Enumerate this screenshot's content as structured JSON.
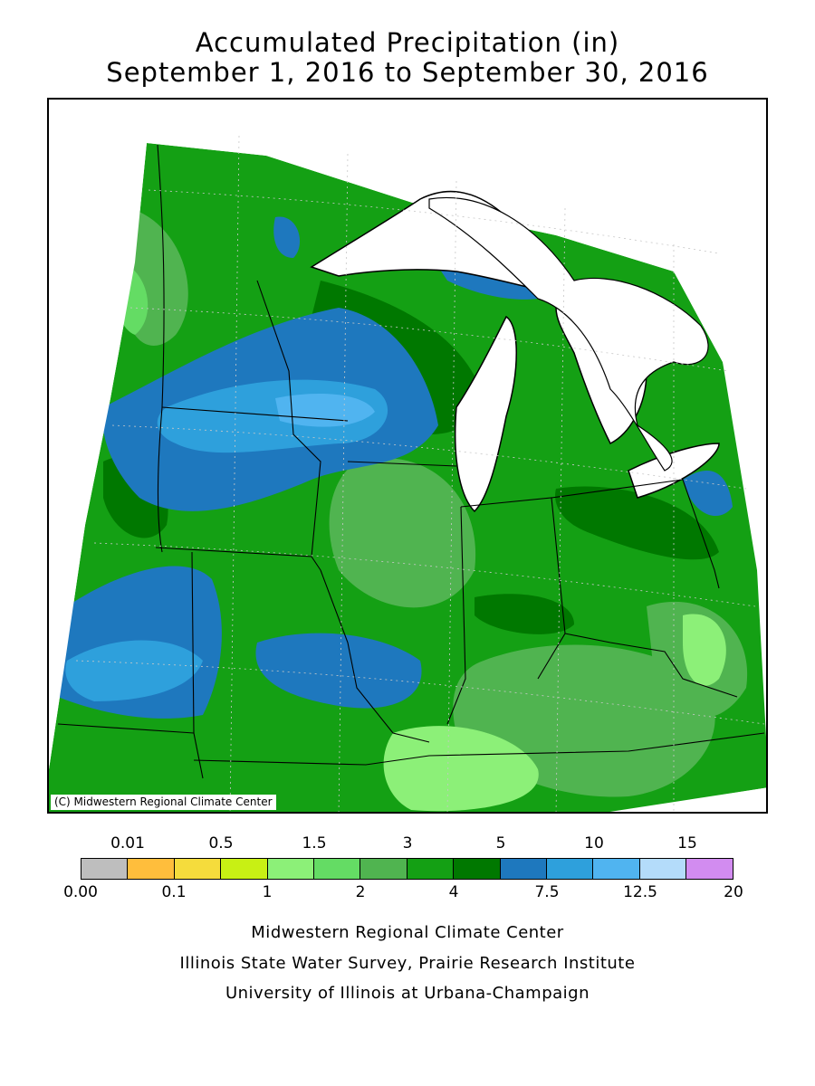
{
  "title_line1": "Accumulated Precipitation (in)",
  "title_line2": "September 1, 2016 to September 30, 2016",
  "map": {
    "copyright": "(C) Midwestern Regional Climate Center",
    "region": "Midwestern United States"
  },
  "legend": {
    "top_labels": [
      "0.01",
      "0.5",
      "1.5",
      "3",
      "5",
      "10",
      "15"
    ],
    "bottom_labels": [
      "0.00",
      "0.1",
      "1",
      "2",
      "4",
      "7.5",
      "12.5",
      "20"
    ],
    "colors": [
      "#bebebe",
      "#ffbe3c",
      "#f5dc3c",
      "#c8f014",
      "#8cf078",
      "#64dc64",
      "#50b450",
      "#14a014",
      "#007800",
      "#1e78be",
      "#2ea0dc",
      "#50b4f0",
      "#b4dcfa",
      "#d28cf0"
    ]
  },
  "credits": [
    "Midwestern Regional Climate Center",
    "Illinois State Water Survey, Prairie Research Institute",
    "University of Illinois at Urbana-Champaign"
  ]
}
